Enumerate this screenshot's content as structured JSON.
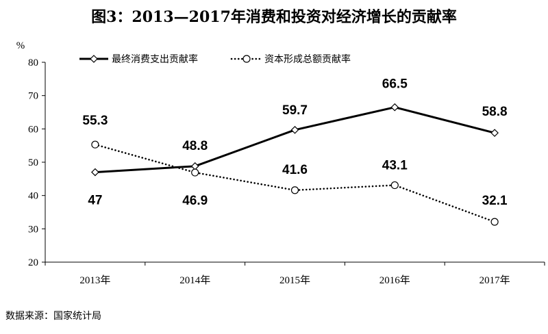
{
  "chart_data": {
    "type": "line",
    "title": "图3：2013—2017年消费和投资对经济增长的贡献率",
    "ylabel": "%",
    "xlabel": "",
    "categories": [
      "2013年",
      "2014年",
      "2015年",
      "2016年",
      "2017年"
    ],
    "ylim": [
      20,
      80
    ],
    "yticks": [
      20,
      30,
      40,
      50,
      60,
      70,
      80
    ],
    "grid": false,
    "legend_position": "top",
    "series": [
      {
        "name": "最终消费支出贡献率",
        "values": [
          47,
          48.8,
          59.7,
          66.5,
          58.8
        ],
        "value_labels": [
          "47",
          "48.8",
          "59.7",
          "66.5",
          "58.8"
        ],
        "line_style": "solid",
        "marker": "diamond",
        "color": "#000000"
      },
      {
        "name": "资本形成总额贡献率",
        "values": [
          55.3,
          46.9,
          41.6,
          43.1,
          32.1
        ],
        "value_labels": [
          "55.3",
          "46.9",
          "41.6",
          "43.1",
          "32.1"
        ],
        "line_style": "dotted",
        "marker": "circle",
        "color": "#000000"
      }
    ]
  },
  "source": "数据来源：国家统计局"
}
